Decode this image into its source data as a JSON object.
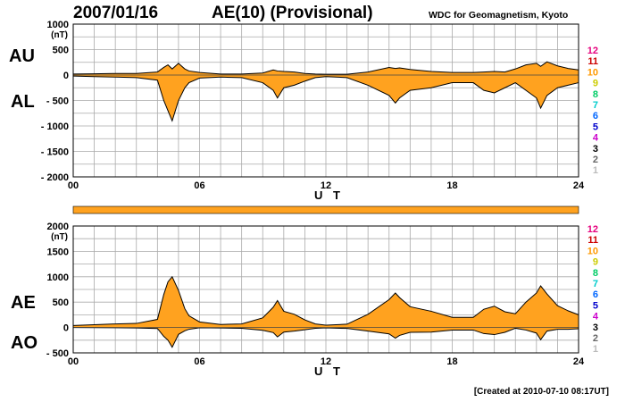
{
  "header": {
    "date": "2007/01/16",
    "title": "AE(10) (Provisional)",
    "source": "WDC for Geomagnetism, Kyoto"
  },
  "footer": {
    "created": "[Created at 2010-07-10 08:17UT]"
  },
  "legend": {
    "entries": [
      "12",
      "11",
      "10",
      "9",
      "8",
      "7",
      "6",
      "5",
      "4",
      "3",
      "2",
      "1"
    ],
    "colors": [
      "#e6007e",
      "#cc0000",
      "#ff9900",
      "#cccc00",
      "#00cc66",
      "#00cccc",
      "#0066ff",
      "#0000cc",
      "#cc00cc",
      "#000000",
      "#666666",
      "#bbbbbb"
    ]
  },
  "colors": {
    "fill": "#ffa21f",
    "outline": "#000000",
    "grid": "#aaaaaa",
    "coverage_bar": "#ffa21f"
  },
  "chart_data": [
    {
      "type": "area",
      "panel": "AU/AL",
      "labels": {
        "upper": "AU",
        "lower": "AL",
        "unit": "(nT)",
        "xlabel": "U T"
      },
      "xlim": [
        0,
        24
      ],
      "ylim": [
        -2000,
        1000
      ],
      "x_ticks": [
        "00",
        "06",
        "12",
        "18",
        "24"
      ],
      "y_ticks": [
        {
          "v": 1000,
          "t": "1000"
        },
        {
          "v": 500,
          "t": "500"
        },
        {
          "v": 0,
          "t": "0"
        },
        {
          "v": -500,
          "t": "- 500"
        },
        {
          "v": -1000,
          "t": "- 1000"
        },
        {
          "v": -1500,
          "t": "- 1500"
        },
        {
          "v": -2000,
          "t": "- 2000"
        }
      ],
      "grid": true,
      "x": [
        0,
        1,
        2,
        3,
        4,
        4.3,
        4.5,
        4.7,
        5,
        5.3,
        5.5,
        6,
        7,
        8,
        9,
        9.5,
        9.7,
        10,
        10.5,
        11,
        11.5,
        12,
        13,
        14,
        15,
        15.3,
        15.5,
        16,
        17,
        18,
        19,
        19.5,
        20,
        20.5,
        21,
        21.5,
        22,
        22.2,
        22.5,
        23,
        23.5,
        24
      ],
      "series": [
        {
          "name": "AU",
          "values": [
            20,
            25,
            30,
            30,
            60,
            150,
            200,
            120,
            230,
            120,
            80,
            50,
            20,
            20,
            40,
            100,
            80,
            70,
            60,
            30,
            20,
            15,
            15,
            60,
            150,
            130,
            140,
            110,
            70,
            50,
            50,
            60,
            70,
            60,
            120,
            200,
            230,
            170,
            260,
            180,
            130,
            100
          ]
        },
        {
          "name": "AL",
          "values": [
            -20,
            -30,
            -40,
            -50,
            -100,
            -500,
            -700,
            -900,
            -500,
            -250,
            -150,
            -60,
            -40,
            -50,
            -150,
            -300,
            -450,
            -250,
            -200,
            -120,
            -50,
            -30,
            -50,
            -200,
            -400,
            -550,
            -450,
            -300,
            -250,
            -150,
            -150,
            -300,
            -350,
            -250,
            -150,
            -300,
            -450,
            -650,
            -400,
            -250,
            -200,
            -150
          ]
        }
      ]
    },
    {
      "type": "area",
      "panel": "AE/AO",
      "labels": {
        "upper": "AE",
        "lower": "AO",
        "unit": "(nT)",
        "xlabel": "U T"
      },
      "xlim": [
        0,
        24
      ],
      "ylim": [
        -500,
        2000
      ],
      "x_ticks": [
        "00",
        "06",
        "12",
        "18",
        "24"
      ],
      "y_ticks": [
        {
          "v": 2000,
          "t": "2000"
        },
        {
          "v": 1500,
          "t": "1500"
        },
        {
          "v": 1000,
          "t": "1000"
        },
        {
          "v": 500,
          "t": "500"
        },
        {
          "v": 0,
          "t": "0"
        },
        {
          "v": -500,
          "t": "- 500"
        }
      ],
      "grid": true,
      "x": [
        0,
        1,
        2,
        3,
        4,
        4.3,
        4.5,
        4.7,
        5,
        5.3,
        5.5,
        6,
        7,
        8,
        9,
        9.5,
        9.7,
        10,
        10.5,
        11,
        11.5,
        12,
        13,
        14,
        15,
        15.3,
        15.5,
        16,
        17,
        18,
        19,
        19.5,
        20,
        20.5,
        21,
        21.5,
        22,
        22.2,
        22.5,
        23,
        23.5,
        24
      ],
      "series": [
        {
          "name": "AE",
          "values": [
            40,
            55,
            70,
            80,
            160,
            650,
            900,
            1000,
            730,
            370,
            230,
            110,
            60,
            70,
            190,
            400,
            530,
            320,
            260,
            150,
            70,
            45,
            65,
            260,
            550,
            680,
            590,
            410,
            320,
            200,
            200,
            360,
            420,
            310,
            270,
            500,
            680,
            820,
            660,
            430,
            330,
            250
          ]
        },
        {
          "name": "AO",
          "values": [
            0,
            -3,
            -5,
            -10,
            -20,
            -175,
            -250,
            -390,
            -135,
            -65,
            -35,
            -5,
            -10,
            -15,
            -55,
            -100,
            -185,
            -90,
            -70,
            -45,
            -15,
            -8,
            -18,
            -70,
            -125,
            -210,
            -155,
            -95,
            -90,
            -50,
            -50,
            -120,
            -140,
            -95,
            -15,
            -50,
            -110,
            -240,
            -70,
            -35,
            -35,
            -25
          ]
        }
      ]
    }
  ]
}
